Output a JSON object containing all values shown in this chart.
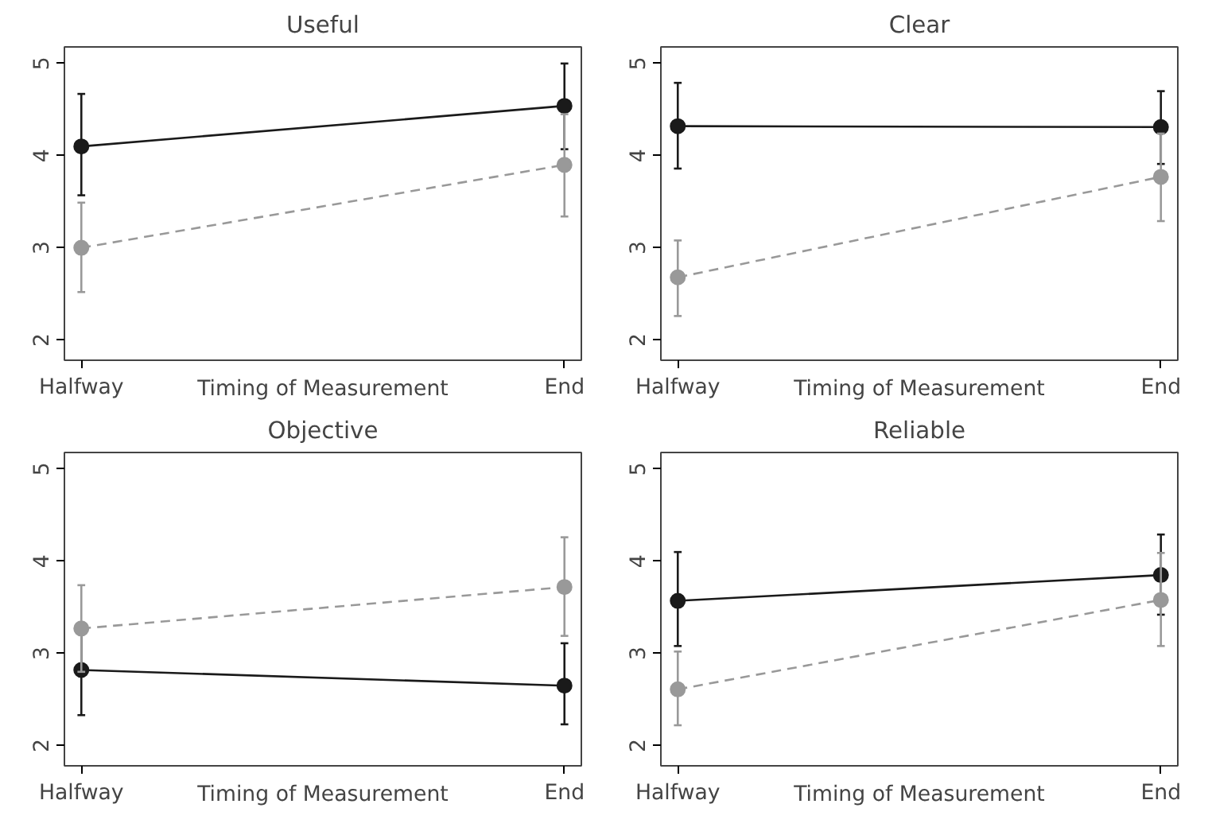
{
  "chart_data": [
    {
      "type": "line",
      "title": "Useful",
      "xlabel": "Timing of Measurement",
      "categories": [
        "Halfway",
        "End"
      ],
      "ylim": [
        1.78,
        5.18
      ],
      "yticks": [
        2,
        3,
        4,
        5
      ],
      "grid": false,
      "marker": "circle",
      "series": [
        {
          "color": "#1a1a1a",
          "line_style": "solid",
          "values": [
            4.1,
            4.54
          ],
          "errors": [
            [
              3.57,
              4.67
            ],
            [
              4.07,
              5.0
            ]
          ]
        },
        {
          "color": "#999999",
          "line_style": "dashed",
          "values": [
            3.0,
            3.9
          ],
          "errors": [
            [
              2.52,
              3.49
            ],
            [
              3.34,
              4.45
            ]
          ]
        }
      ]
    },
    {
      "type": "line",
      "title": "Clear",
      "xlabel": "Timing of Measurement",
      "categories": [
        "Halfway",
        "End"
      ],
      "ylim": [
        1.78,
        5.18
      ],
      "yticks": [
        2,
        3,
        4,
        5
      ],
      "grid": false,
      "marker": "circle",
      "series": [
        {
          "color": "#1a1a1a",
          "line_style": "solid",
          "values": [
            4.32,
            4.31
          ],
          "errors": [
            [
              3.86,
              4.79
            ],
            [
              3.91,
              4.7
            ]
          ]
        },
        {
          "color": "#999999",
          "line_style": "dashed",
          "values": [
            2.68,
            3.77
          ],
          "errors": [
            [
              2.26,
              3.08
            ],
            [
              3.29,
              4.24
            ]
          ]
        }
      ]
    },
    {
      "type": "line",
      "title": "Objective",
      "xlabel": "Timing of Measurement",
      "categories": [
        "Halfway",
        "End"
      ],
      "ylim": [
        1.78,
        5.18
      ],
      "yticks": [
        2,
        3,
        4,
        5
      ],
      "grid": false,
      "marker": "circle",
      "series": [
        {
          "color": "#1a1a1a",
          "line_style": "solid",
          "values": [
            2.82,
            2.65
          ],
          "errors": [
            [
              2.33,
              3.33
            ],
            [
              2.23,
              3.11
            ]
          ]
        },
        {
          "color": "#999999",
          "line_style": "dashed",
          "values": [
            3.27,
            3.72
          ],
          "errors": [
            [
              2.8,
              3.74
            ],
            [
              3.19,
              4.26
            ]
          ]
        }
      ]
    },
    {
      "type": "line",
      "title": "Reliable",
      "xlabel": "Timing of Measurement",
      "categories": [
        "Halfway",
        "End"
      ],
      "ylim": [
        1.78,
        5.18
      ],
      "yticks": [
        2,
        3,
        4,
        5
      ],
      "grid": false,
      "marker": "circle",
      "series": [
        {
          "color": "#1a1a1a",
          "line_style": "solid",
          "values": [
            3.57,
            3.85
          ],
          "errors": [
            [
              3.08,
              4.1
            ],
            [
              3.42,
              4.29
            ]
          ]
        },
        {
          "color": "#999999",
          "line_style": "dashed",
          "values": [
            2.61,
            3.58
          ],
          "errors": [
            [
              2.22,
              3.02
            ],
            [
              3.08,
              4.09
            ]
          ]
        }
      ]
    }
  ]
}
